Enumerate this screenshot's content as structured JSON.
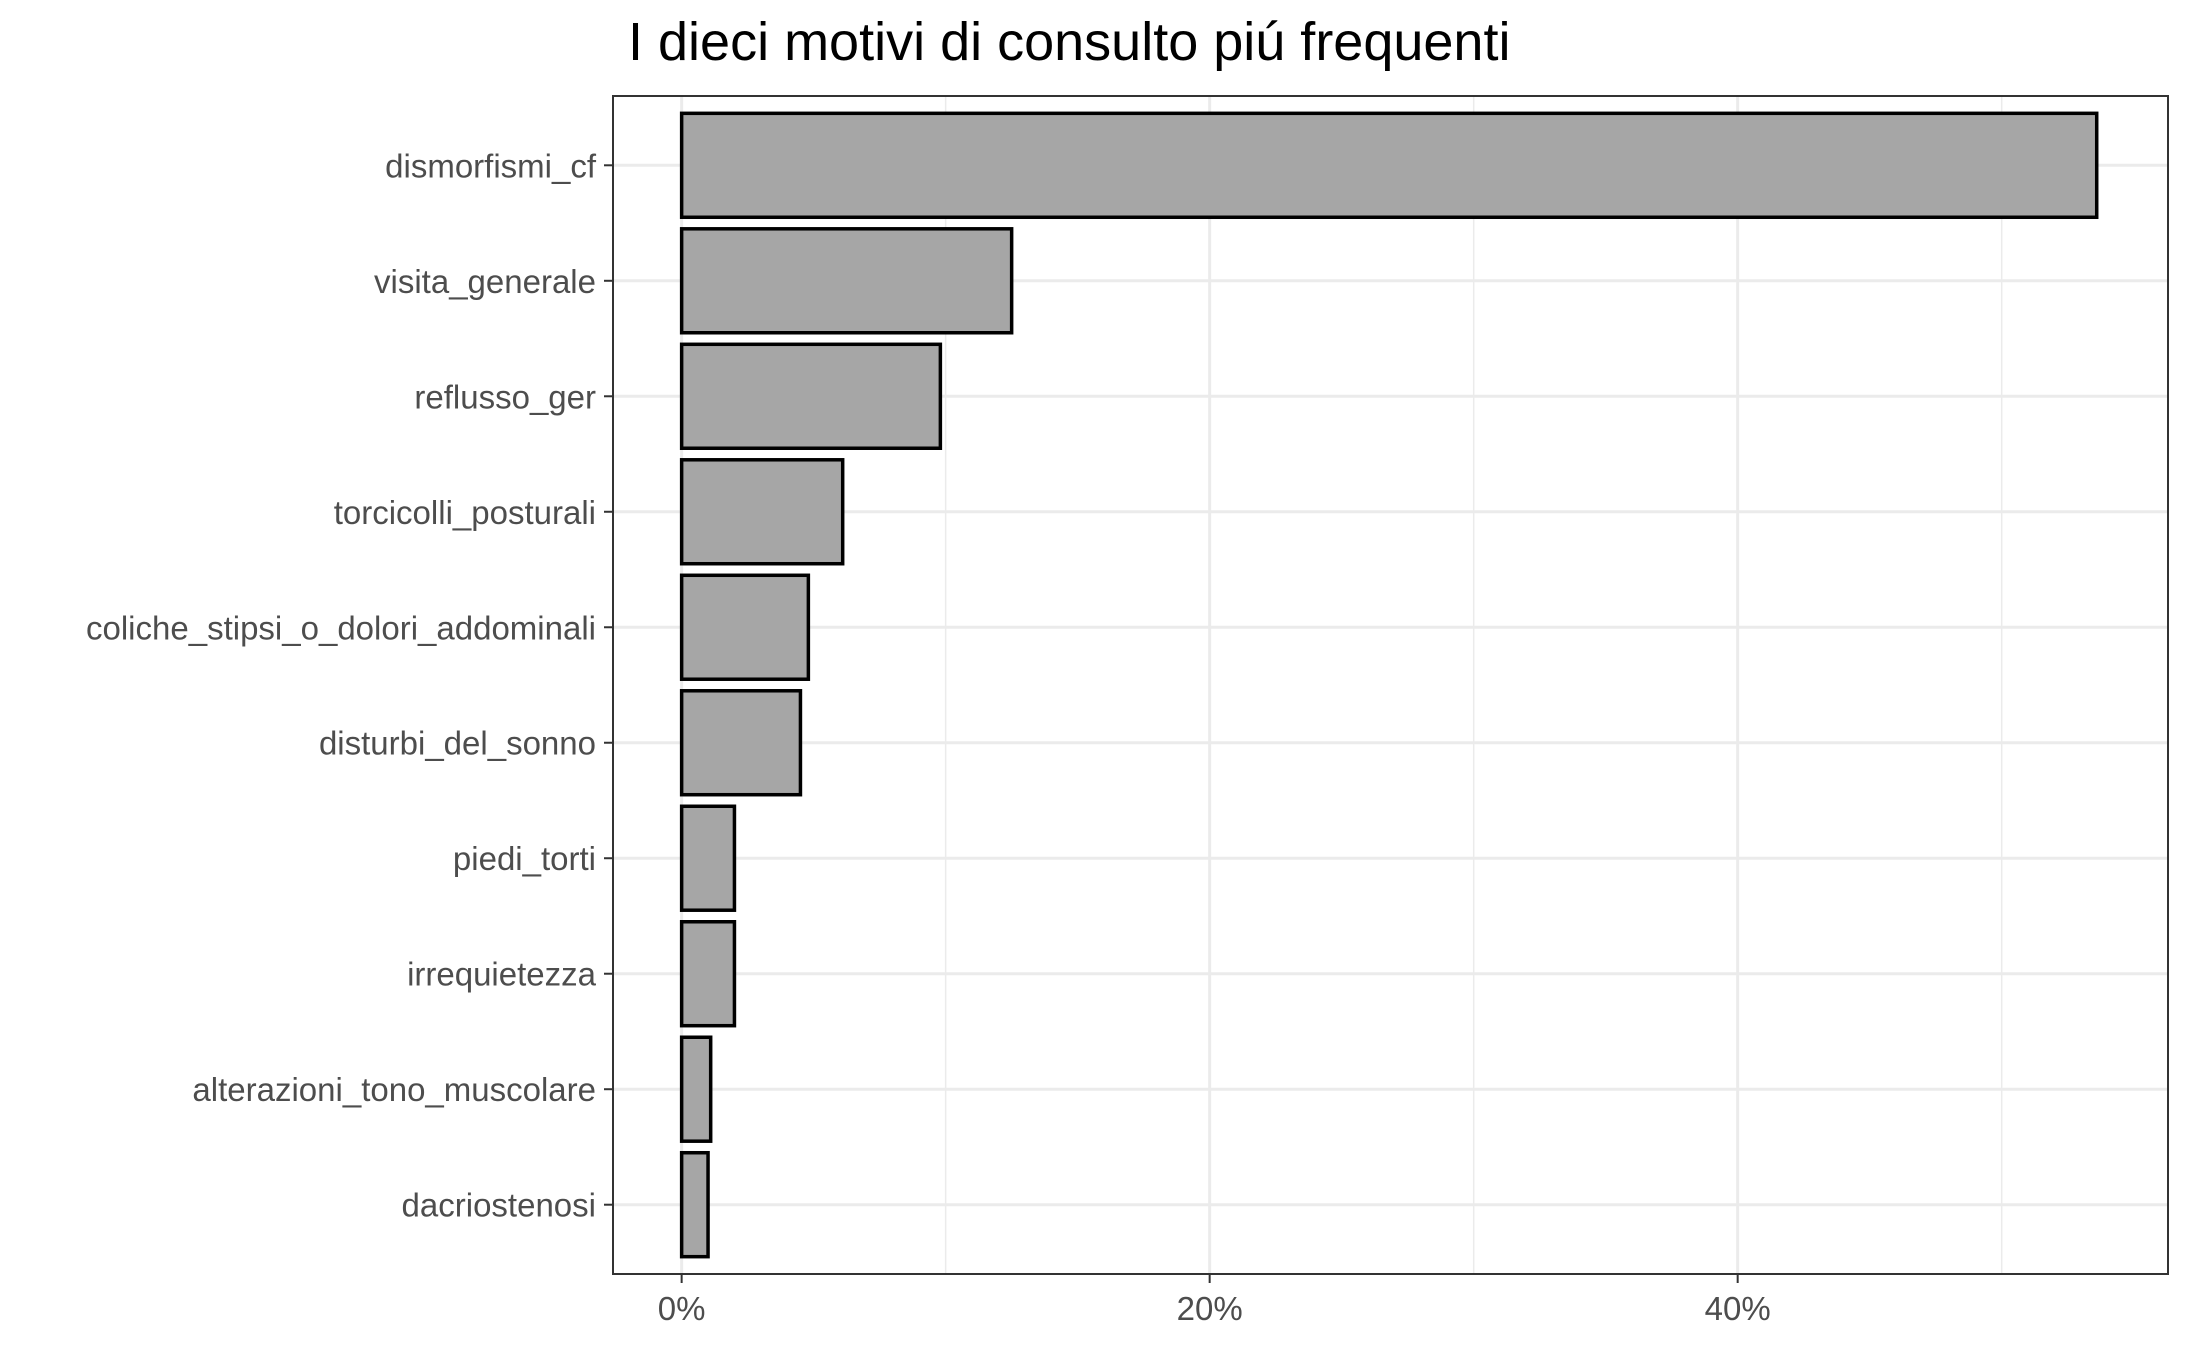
{
  "chart_data": {
    "type": "bar",
    "orientation": "horizontal",
    "title": "I dieci motivi di consulto piú frequenti",
    "xlabel": "",
    "ylabel": "",
    "categories": [
      "dismorfismi_cf",
      "visita_generale",
      "reflusso_ger",
      "torcicolli_posturali",
      "coliche_stipsi_o_dolori_addominali",
      "disturbi_del_sonno",
      "piedi_torti",
      "irrequietezza",
      "alterazioni_tono_muscolare",
      "dacriostenosi"
    ],
    "values": [
      53.6,
      12.5,
      9.8,
      6.1,
      4.8,
      4.5,
      2.0,
      2.0,
      1.1,
      1.0
    ],
    "x_ticks": [
      0,
      20,
      40
    ],
    "x_tick_labels": [
      "0%",
      "20%",
      "40%"
    ],
    "xlim": [
      -2.6,
      56.3
    ],
    "grid": true,
    "bar_fill": "#a6a6a6",
    "bar_stroke": "#000000",
    "grid_color": "#ebebeb"
  }
}
